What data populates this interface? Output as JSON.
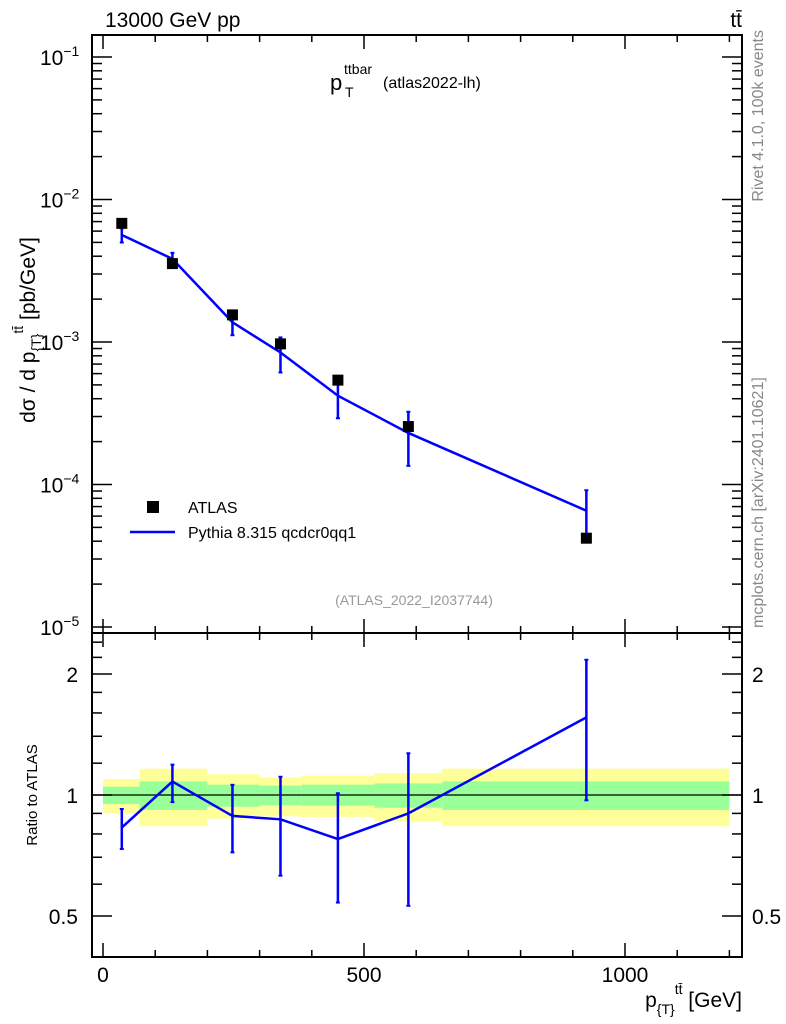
{
  "chart_data": {
    "type": "line",
    "header_left": "13000 GeV pp",
    "header_right": "tt̄",
    "title_main": "p",
    "title_sup": "ttbar",
    "title_sub": "T",
    "title_tail": "(atlas2022-lh)",
    "ylabel": {
      "a": "dσ / d p",
      "sub": "{T}",
      "sup": "tt̄",
      "b": " [pb/GeV]"
    },
    "xlabel": {
      "a": "p",
      "sub": "{T}",
      "sup": "tt̄",
      "b": " [GeV]"
    },
    "ratio_ylabel": "Ratio to ATLAS",
    "side_text_top": "Rivet 4.1.0,  100k events",
    "side_text_bottom": "mcplots.cern.ch [arXiv:2401.10621]",
    "analysis_ref": "(ATLAS_2022_I2037744)",
    "xlim": [
      -21,
      1224
    ],
    "ylim": [
      1e-05,
      0.14
    ],
    "ratio_ylim": [
      0.395,
      2.53
    ],
    "x_ticks": [
      "0",
      "500",
      "1000"
    ],
    "x_tick_values": [
      0,
      500,
      1000
    ],
    "y_ticks": [
      {
        "base": "10",
        "exp": "−1",
        "value": 0.1
      },
      {
        "base": "10",
        "exp": "−2",
        "value": 0.01
      },
      {
        "base": "10",
        "exp": "−3",
        "value": 0.001
      },
      {
        "base": "10",
        "exp": "−4",
        "value": 0.0001
      },
      {
        "base": "10",
        "exp": "−5",
        "value": 1e-05
      }
    ],
    "ratio_ticks": [
      {
        "label": "2",
        "value": 2
      },
      {
        "label": "1",
        "value": 1
      },
      {
        "label": "0.5",
        "value": 0.5
      }
    ],
    "bins": [
      [
        0,
        70
      ],
      [
        70,
        200
      ],
      [
        200,
        300
      ],
      [
        300,
        380
      ],
      [
        380,
        520
      ],
      [
        520,
        650
      ],
      [
        650,
        1200
      ]
    ],
    "x": [
      36,
      133,
      248,
      340,
      450,
      585,
      926
    ],
    "series": [
      {
        "name": "ATLAS",
        "color": "#000000",
        "marker": "square",
        "values": [
          0.0068,
          0.00355,
          0.00155,
          0.00097,
          0.00054,
          0.000255,
          4.2e-05
        ],
        "band_green": [
          [
            0.95,
            1.049
          ],
          [
            0.918,
            1.081
          ],
          [
            0.935,
            1.061
          ],
          [
            0.944,
            1.055
          ],
          [
            0.941,
            1.061
          ],
          [
            0.93,
            1.069
          ],
          [
            0.918,
            1.081
          ]
        ],
        "band_yellow": [
          [
            0.9,
            1.096
          ],
          [
            0.836,
            1.163
          ],
          [
            0.873,
            1.126
          ],
          [
            0.885,
            1.106
          ],
          [
            0.882,
            1.117
          ],
          [
            0.86,
            1.134
          ],
          [
            0.836,
            1.163
          ]
        ]
      },
      {
        "name": "Pythia 8.315 qcdcr0qq1",
        "color": "#0000ff",
        "marker": "line",
        "values": [
          0.00564,
          0.00383,
          0.001375,
          0.000844,
          0.00042,
          0.00023,
          6.55e-05
        ],
        "ratio": [
          0.83,
          1.08,
          0.887,
          0.87,
          0.777,
          0.9,
          1.56
        ],
        "ratio_err": [
          [
            0.734,
            0.923
          ],
          [
            0.96,
            1.19
          ],
          [
            0.72,
            1.06
          ],
          [
            0.63,
            1.11
          ],
          [
            0.54,
            1.01
          ],
          [
            0.53,
            1.27
          ],
          [
            0.97,
            2.17
          ]
        ]
      }
    ],
    "legend_placement": "bottom-left",
    "grid": false
  }
}
